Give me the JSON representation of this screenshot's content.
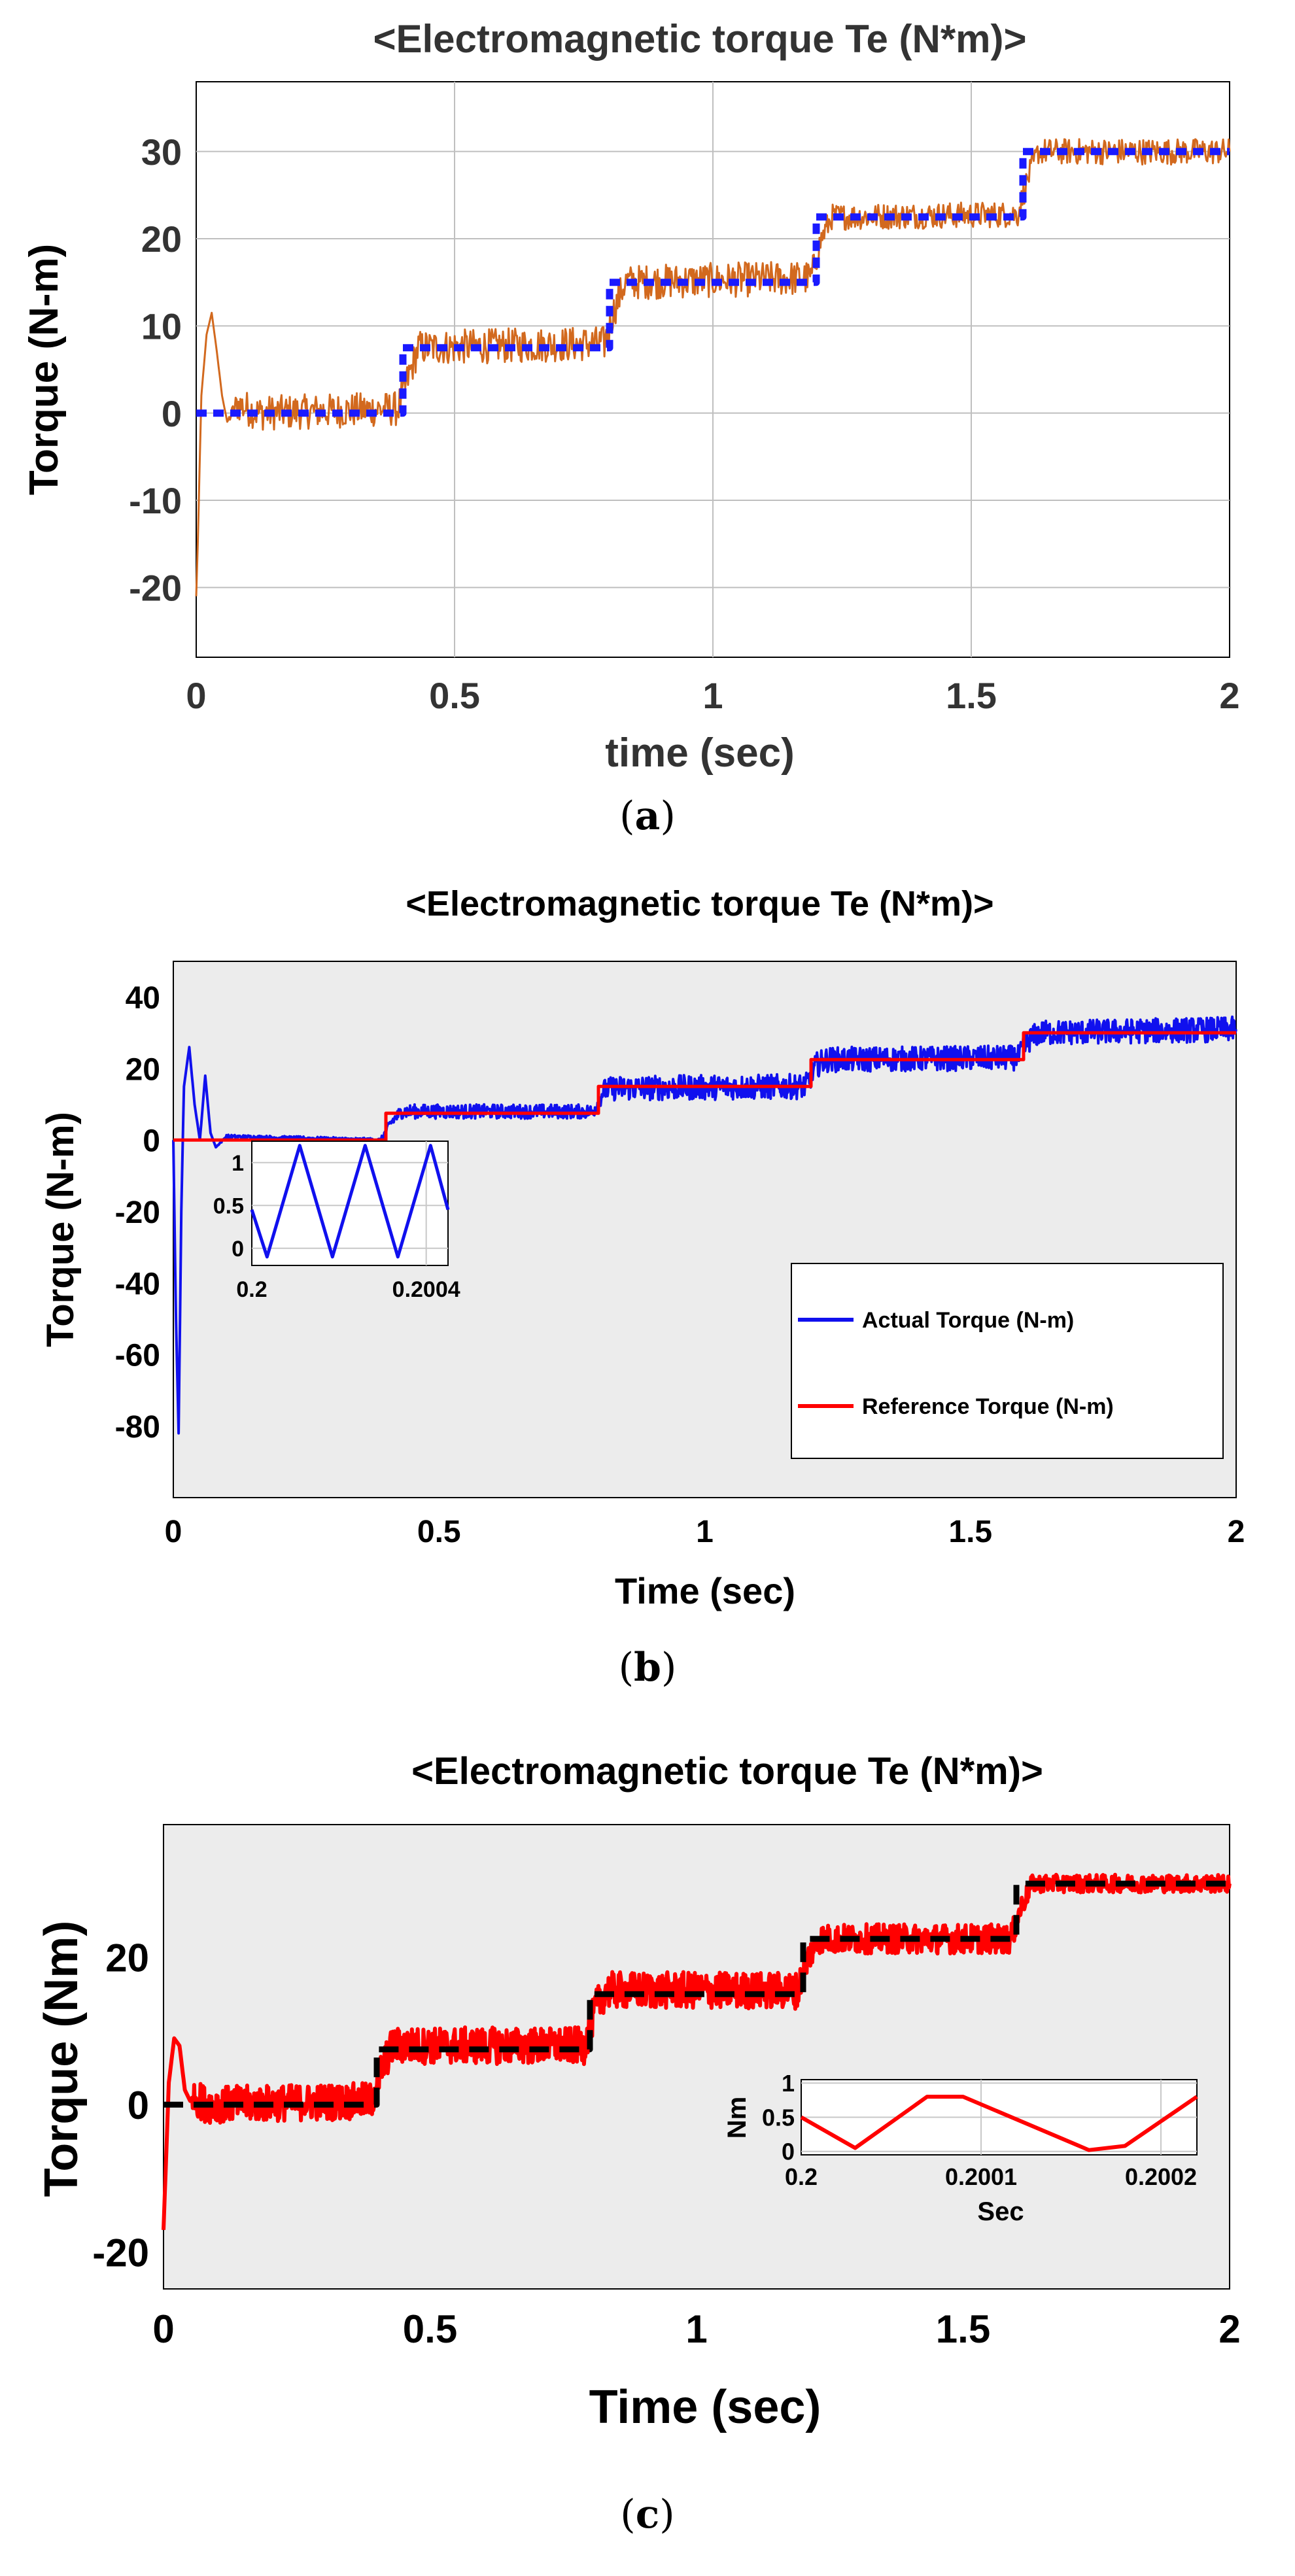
{
  "colors": {
    "orange": "#d2691e",
    "blue_dotted": "#1a1aff",
    "blue": "#1010ee",
    "red": "#ff0000",
    "black": "#000000",
    "panel_gray": "#ececec",
    "grid": "#bfbfbf"
  },
  "chart_data": [
    {
      "id": "a",
      "caption_letter": "a",
      "type": "line",
      "title": "<Electromagnetic torque Te (N*m)>",
      "xlabel": "time (sec)",
      "ylabel": "Torque (N-m)",
      "xlim": [
        0,
        2
      ],
      "ylim": [
        -28,
        38
      ],
      "xticks": [
        0,
        0.5,
        1,
        1.5,
        2
      ],
      "xtick_labels": [
        "0",
        "0.5",
        "1",
        "1.5",
        "2"
      ],
      "yticks": [
        -20,
        -10,
        0,
        10,
        20,
        30
      ],
      "ytick_labels": [
        "-20",
        "-10",
        "0",
        "10",
        "20",
        "30"
      ],
      "grid": true,
      "series": [
        {
          "style": "solid",
          "color": "#d2691e",
          "x": [
            0,
            0.003,
            0.01,
            0.02,
            0.03,
            0.04,
            0.05,
            0.06,
            0.08,
            0.12,
            0.39,
            0.41,
            0.43,
            0.79,
            0.81,
            0.83,
            1.19,
            1.21,
            1.23,
            1.59,
            1.61,
            1.63,
            2.0
          ],
          "y": [
            -21,
            -15,
            2,
            9,
            11.5,
            7,
            2,
            -1,
            1,
            0,
            0.5,
            4,
            7.5,
            8,
            12,
            15,
            15.5,
            20,
            22.5,
            22.8,
            27,
            30,
            30
          ],
          "noise": [
            0,
            0,
            0,
            0,
            0,
            0,
            0,
            0,
            2,
            2,
            2,
            2,
            2,
            2,
            2,
            2,
            2,
            1.5,
            1.5,
            1.5,
            1.5,
            1.5,
            1.5
          ]
        },
        {
          "style": "dotted",
          "color": "#1a1aff",
          "x": [
            0,
            0.4,
            0.4,
            0.8,
            0.8,
            1.2,
            1.2,
            1.6,
            1.6,
            2.0
          ],
          "y": [
            0,
            0,
            7.5,
            7.5,
            15,
            15,
            22.5,
            22.5,
            30,
            30
          ]
        }
      ]
    },
    {
      "id": "b",
      "caption_letter": "b",
      "type": "line",
      "title": "<Electromagnetic torque Te (N*m)>",
      "xlabel": "Time (sec)",
      "ylabel": "Torque (N-m)",
      "xlim": [
        0,
        2
      ],
      "ylim": [
        -100,
        50
      ],
      "xticks": [
        0,
        0.5,
        1,
        1.5,
        2
      ],
      "xtick_labels": [
        "0",
        "0.5",
        "1",
        "1.5",
        "2"
      ],
      "yticks": [
        -80,
        -60,
        -40,
        -20,
        0,
        20,
        40
      ],
      "ytick_labels": [
        "-80",
        "-60",
        "-40",
        "-20",
        "0",
        "20",
        "40"
      ],
      "grid": false,
      "legend_position": "right",
      "series": [
        {
          "name": "Actual Torque (N-m)",
          "color": "#1010ee",
          "x": [
            0,
            0.005,
            0.01,
            0.015,
            0.02,
            0.03,
            0.04,
            0.05,
            0.06,
            0.07,
            0.08,
            0.1,
            0.39,
            0.41,
            0.43,
            0.79,
            0.81,
            0.83,
            1.19,
            1.21,
            1.23,
            1.59,
            1.61,
            1.63,
            2.0
          ],
          "y": [
            0,
            -50,
            -82,
            -20,
            15,
            26,
            10,
            0,
            18,
            2,
            -2,
            1,
            0,
            5,
            8,
            8,
            14,
            14.5,
            15,
            21,
            22.5,
            23,
            28,
            30,
            31
          ],
          "noise": [
            0,
            0,
            0,
            0,
            0,
            0,
            0,
            0,
            0,
            0,
            0,
            0.5,
            0.5,
            1.5,
            2,
            2,
            3,
            3.5,
            3.5,
            3.5,
            3.5,
            3.5,
            3.5,
            3.5,
            3.5
          ]
        },
        {
          "name": "Reference Torque (N-m)",
          "color": "#ff0000",
          "x": [
            0,
            0.4,
            0.4,
            0.8,
            0.8,
            1.2,
            1.2,
            1.6,
            1.6,
            2.0
          ],
          "y": [
            0,
            0,
            7.5,
            7.5,
            15,
            15,
            22.5,
            22.5,
            30,
            30
          ]
        }
      ],
      "inset": {
        "type": "line",
        "xlim": [
          0.2,
          0.20045
        ],
        "ylim": [
          -0.2,
          1.25
        ],
        "xticks": [
          0.2,
          0.2004
        ],
        "xtick_labels": [
          "0.2",
          "0.2004"
        ],
        "yticks": [
          0,
          0.5,
          1
        ],
        "ytick_labels": [
          "0",
          "0.5",
          "1"
        ],
        "series": [
          {
            "color": "#1010ee",
            "x": [
              0.2,
              0.200035,
              0.20011,
              0.200185,
              0.20026,
              0.200335,
              0.20041,
              0.20045
            ],
            "y": [
              0.45,
              -0.1,
              1.2,
              -0.1,
              1.2,
              -0.1,
              1.2,
              0.45
            ]
          }
        ]
      }
    },
    {
      "id": "c",
      "caption_letter": "c",
      "type": "line",
      "title": "<Electromagnetic torque Te (N*m)>",
      "xlabel": "Time (sec)",
      "ylabel": "Torque (Nm)",
      "xlim": [
        0,
        2
      ],
      "ylim": [
        -25,
        38
      ],
      "xticks": [
        0,
        0.5,
        1,
        1.5,
        2
      ],
      "xtick_labels": [
        "0",
        "0.5",
        "1",
        "1.5",
        "2"
      ],
      "yticks": [
        -20,
        0,
        20
      ],
      "ytick_labels": [
        "-20",
        "0",
        "20"
      ],
      "grid": false,
      "series": [
        {
          "style": "solid",
          "color": "#ff0000",
          "x": [
            0,
            0.01,
            0.02,
            0.03,
            0.04,
            0.05,
            0.06,
            0.08,
            0.39,
            0.41,
            0.43,
            0.79,
            0.81,
            0.83,
            1.19,
            1.21,
            1.23,
            1.59,
            1.61,
            1.63,
            1.7,
            2.0
          ],
          "y": [
            -17,
            3,
            9,
            8,
            2,
            0.5,
            1,
            0,
            0.5,
            5,
            8,
            8,
            13,
            15.5,
            15.5,
            20,
            22.5,
            22.5,
            27,
            30,
            30,
            30
          ],
          "noise": [
            0,
            0,
            0,
            0,
            0,
            0,
            2.5,
            2.5,
            2.5,
            2.5,
            2.5,
            2.5,
            2.5,
            2.5,
            2.5,
            2,
            2,
            2,
            1.5,
            1.2,
            1.2,
            1.2
          ]
        },
        {
          "style": "dashed",
          "color": "#000000",
          "x": [
            0,
            0.4,
            0.4,
            0.8,
            0.8,
            1.2,
            1.2,
            1.6,
            1.6,
            2.0
          ],
          "y": [
            0,
            0,
            7.5,
            7.5,
            15,
            15,
            22.5,
            22.5,
            30,
            30
          ]
        }
      ],
      "inset": {
        "type": "line",
        "xlabel": "Sec",
        "ylabel": "Nm",
        "xlim": [
          0.2,
          0.20022
        ],
        "ylim": [
          -0.05,
          1.05
        ],
        "xticks": [
          0.2,
          0.2001,
          0.2002
        ],
        "xtick_labels": [
          "0.2",
          "0.2001",
          "0.2002"
        ],
        "yticks": [
          0,
          0.5,
          1
        ],
        "ytick_labels": [
          "0",
          "0.5",
          "1"
        ],
        "series": [
          {
            "color": "#ff0000",
            "x": [
              0.2,
              0.20003,
              0.20007,
              0.20009,
              0.20016,
              0.20018,
              0.20022
            ],
            "y": [
              0.5,
              0.05,
              0.8,
              0.8,
              0.02,
              0.08,
              0.8
            ]
          }
        ]
      }
    }
  ]
}
